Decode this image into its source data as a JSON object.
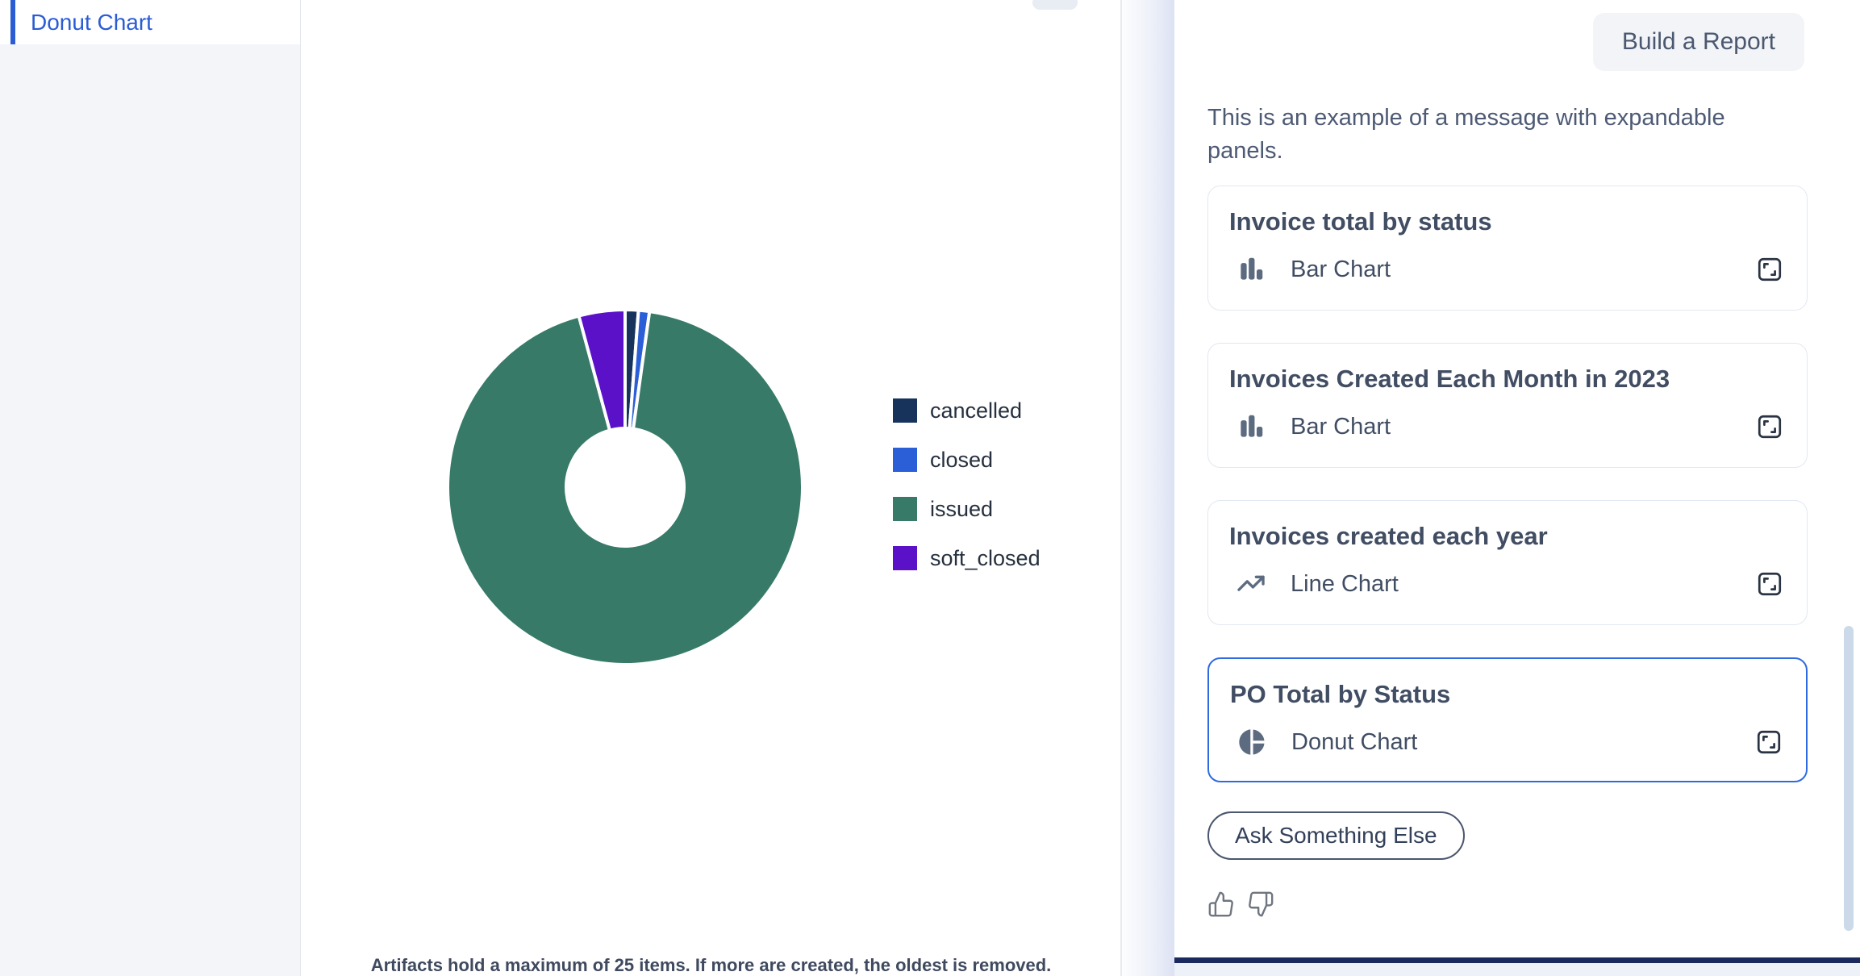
{
  "sidebar": {
    "items": [
      {
        "label": "Donut Chart",
        "selected": true
      }
    ]
  },
  "artifact_panel": {
    "footer_note": "Artifacts hold a maximum of 25 items. If more are created, the oldest is removed."
  },
  "chart_data": {
    "type": "pie",
    "subtype": "donut",
    "title": "",
    "categories": [
      "cancelled",
      "closed",
      "issued",
      "soft_closed"
    ],
    "values": [
      1.2,
      1.0,
      93.6,
      4.2
    ],
    "values_unit": "percent (estimated from arc angles)",
    "colors": [
      "#17335b",
      "#2b5fd8",
      "#377a67",
      "#5a11c8"
    ],
    "hole_ratio": 0.33,
    "start_angle_deg": 0,
    "direction": "clockwise",
    "legend_position": "right",
    "grid": false
  },
  "chat_panel": {
    "build_report_label": "Build a Report",
    "message": "This is an example of a message with expandable panels.",
    "cards": [
      {
        "title": "Invoice total by status",
        "chart_type": "Bar Chart",
        "icon": "bar-chart",
        "active": false
      },
      {
        "title": "Invoices Created Each Month in 2023",
        "chart_type": "Bar Chart",
        "icon": "bar-chart",
        "active": false
      },
      {
        "title": "Invoices created each year",
        "chart_type": "Line Chart",
        "icon": "line-chart",
        "active": false
      },
      {
        "title": "PO Total by Status",
        "chart_type": "Donut Chart",
        "icon": "donut-chart",
        "active": true
      }
    ],
    "ask_button_label": "Ask Something Else",
    "feedback_icons": [
      "thumbs-up",
      "thumbs-down"
    ]
  },
  "colors": {
    "accent_blue": "#2a5cd4",
    "active_card_border": "#2f6ae0",
    "sidebar_bg": "#f3f5f9",
    "bottom_bar_navy": "#1b2a5e",
    "icon_slate": "#5d6b80"
  }
}
